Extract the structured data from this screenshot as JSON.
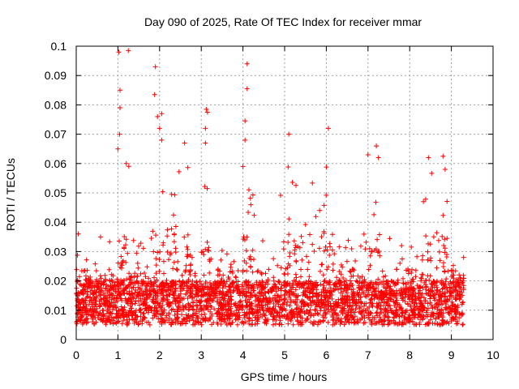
{
  "chart_data": {
    "type": "scatter",
    "title": "Day 090 of 2025, Rate Of TEC Index for receiver mmar",
    "xlabel": "GPS time / hours",
    "ylabel": "ROTI / TECUs",
    "xlim": [
      0,
      10
    ],
    "ylim": [
      0,
      0.1
    ],
    "x_ticks": [
      "0",
      "1",
      "2",
      "3",
      "4",
      "5",
      "6",
      "7",
      "8",
      "9",
      "10"
    ],
    "y_ticks": [
      "0",
      "0.01",
      "0.02",
      "0.03",
      "0.04",
      "0.05",
      "0.06",
      "0.07",
      "0.08",
      "0.09",
      "0.1"
    ],
    "grid": true,
    "marker": "+",
    "color": "#ff0000",
    "series": [
      {
        "name": "ROTI",
        "notable_points": [
          {
            "x": 1.02,
            "y": 0.098
          },
          {
            "x": 1.25,
            "y": 0.0985
          },
          {
            "x": 1.05,
            "y": 0.085
          },
          {
            "x": 1.05,
            "y": 0.079
          },
          {
            "x": 1.04,
            "y": 0.07
          },
          {
            "x": 1.0,
            "y": 0.065
          },
          {
            "x": 1.2,
            "y": 0.06
          },
          {
            "x": 1.9,
            "y": 0.093
          },
          {
            "x": 1.88,
            "y": 0.0835
          },
          {
            "x": 1.95,
            "y": 0.076
          },
          {
            "x": 2.05,
            "y": 0.077
          },
          {
            "x": 2.0,
            "y": 0.072
          },
          {
            "x": 2.05,
            "y": 0.068
          },
          {
            "x": 2.6,
            "y": 0.067
          },
          {
            "x": 3.12,
            "y": 0.0785
          },
          {
            "x": 3.15,
            "y": 0.0775
          },
          {
            "x": 3.1,
            "y": 0.072
          },
          {
            "x": 3.1,
            "y": 0.067
          },
          {
            "x": 4.1,
            "y": 0.094
          },
          {
            "x": 4.1,
            "y": 0.0855
          },
          {
            "x": 4.05,
            "y": 0.0745
          },
          {
            "x": 4.05,
            "y": 0.068
          },
          {
            "x": 4.0,
            "y": 0.059
          },
          {
            "x": 5.1,
            "y": 0.07
          },
          {
            "x": 6.05,
            "y": 0.072
          },
          {
            "x": 7.0,
            "y": 0.063
          },
          {
            "x": 7.2,
            "y": 0.066
          },
          {
            "x": 7.25,
            "y": 0.062
          },
          {
            "x": 8.45,
            "y": 0.062
          },
          {
            "x": 8.8,
            "y": 0.0625
          },
          {
            "x": 8.85,
            "y": 0.058
          },
          {
            "x": 0.05,
            "y": 0.036
          }
        ],
        "density_profile": {
          "x_range": [
            0,
            9.3
          ],
          "bulk_y_range": [
            0.005,
            0.025
          ],
          "typical_median": 0.012,
          "active_periods_hours": [
            [
              1.0,
              1.3
            ],
            [
              1.8,
              2.7
            ],
            [
              3.0,
              3.3
            ],
            [
              4.0,
              4.3
            ],
            [
              4.8,
              6.2
            ],
            [
              6.9,
              7.3
            ],
            [
              8.3,
              8.9
            ]
          ]
        }
      }
    ]
  }
}
